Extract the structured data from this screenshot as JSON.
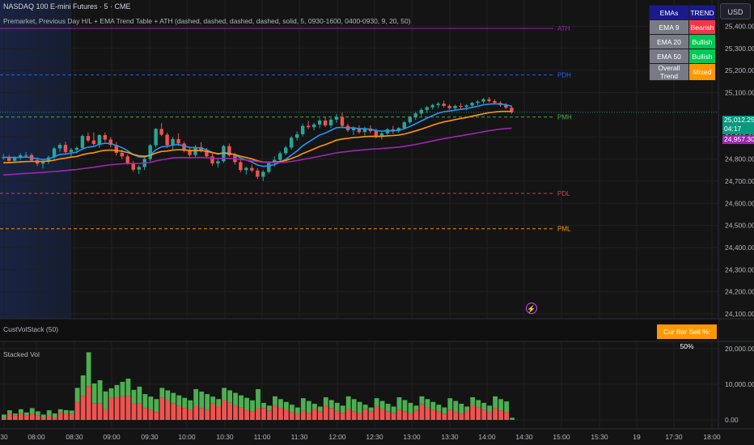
{
  "header": {
    "symbol_title": "NASDAQ 100 E-mini Futures · 5 · CME",
    "indicator_title": "Premarket, Previous Day H/L + EMA Trend Table + ATH (dashed, dashed, dashed, dashed, solid, 5, 0930-1600, 0400-0930, 9, 20, 50)",
    "currency_button": "USD"
  },
  "ema_table": {
    "header": [
      "EMAs",
      "TREND"
    ],
    "rows": [
      {
        "label": "EMA 9",
        "trend": "Bearish"
      },
      {
        "label": "EMA 20",
        "trend": "Bullish"
      },
      {
        "label": "EMA 50",
        "trend": "Bullish"
      },
      {
        "label": "Overall Trend",
        "trend": "Mixed"
      }
    ]
  },
  "levels": [
    {
      "label": "ATH",
      "price": 25390,
      "color": "#9c27b0",
      "style": "solid"
    },
    {
      "label": "PDH",
      "price": 25180,
      "color": "#2962ff",
      "style": "dashed"
    },
    {
      "label": "PMH",
      "price": 24990,
      "color": "#4caf50",
      "style": "dashed"
    },
    {
      "label": "PDL",
      "price": 24645,
      "color": "#f23645",
      "style": "dashed"
    },
    {
      "label": "PML",
      "price": 24485,
      "color": "#ff9800",
      "style": "dashed"
    }
  ],
  "price_axis": {
    "ticks": [
      "25,400.00",
      "25,300.00",
      "25,200.00",
      "25,100.00",
      "24,900.00",
      "24,800.00",
      "24,700.00",
      "24,600.00",
      "24,500.00",
      "24,400.00",
      "24,300.00",
      "24,200.00",
      "24,100.00"
    ],
    "current_price": "25,012.25",
    "countdown": "04:17",
    "ema_price": "24,957.30"
  },
  "volume_pane": {
    "indicator_label": "CustVolStack (50)",
    "sell_badge": "Cur Bar Sell %: 50%",
    "stacked_label": "Stacked Vol",
    "ticks": [
      "20,000.00",
      "10,000.00",
      "0.00"
    ]
  },
  "time_axis": [
    "30",
    "08:00",
    "08:30",
    "09:00",
    "09:30",
    "10:00",
    "10:30",
    "11:00",
    "11:30",
    "12:00",
    "12:30",
    "13:00",
    "13:30",
    "14:00",
    "14:30",
    "15:00",
    "15:30",
    "19",
    "17:30",
    "18:00"
  ],
  "colors": {
    "up": "#26a69a",
    "down": "#ef5350",
    "ema9": "#2196f3",
    "ema20": "#ff9800",
    "ema50": "#9c27b0",
    "vol_buy": "#4caf50",
    "vol_sell": "#ef5350",
    "badge": "#ff9800",
    "bg": "#141414"
  },
  "chart_data": {
    "type": "candlestick",
    "price_range": [
      24100,
      25450
    ],
    "candles": [
      [
        24804,
        24823,
        24796,
        24808
      ],
      [
        24808,
        24818,
        24786,
        24792
      ],
      [
        24792,
        24812,
        24781,
        24805
      ],
      [
        24805,
        24826,
        24796,
        24817
      ],
      [
        24817,
        24832,
        24806,
        24818
      ],
      [
        24818,
        24826,
        24788,
        24794
      ],
      [
        24794,
        24808,
        24768,
        24779
      ],
      [
        24779,
        24800,
        24758,
        24788
      ],
      [
        24788,
        24816,
        24778,
        24808
      ],
      [
        24808,
        24855,
        24796,
        24848
      ],
      [
        24848,
        24872,
        24832,
        24864
      ],
      [
        24864,
        24878,
        24826,
        24832
      ],
      [
        24832,
        24850,
        24812,
        24842
      ],
      [
        24842,
        24858,
        24826,
        24850
      ],
      [
        24850,
        24912,
        24840,
        24904
      ],
      [
        24904,
        24920,
        24876,
        24884
      ],
      [
        24884,
        24920,
        24860,
        24868
      ],
      [
        24868,
        24912,
        24850,
        24908
      ],
      [
        24908,
        24920,
        24878,
        24888
      ],
      [
        24888,
        24899,
        24853,
        24864
      ],
      [
        24864,
        24876,
        24816,
        24828
      ],
      [
        24828,
        24842,
        24800,
        24812
      ],
      [
        24812,
        24820,
        24774,
        24782
      ],
      [
        24782,
        24792,
        24744,
        24752
      ],
      [
        24752,
        24772,
        24732,
        24764
      ],
      [
        24764,
        24806,
        24750,
        24800
      ],
      [
        24800,
        24868,
        24790,
        24862
      ],
      [
        24862,
        24940,
        24852,
        24936
      ],
      [
        24936,
        24962,
        24904,
        24910
      ],
      [
        24910,
        24920,
        24850,
        24862
      ],
      [
        24862,
        24899,
        24840,
        24890
      ],
      [
        24890,
        24916,
        24860,
        24870
      ],
      [
        24870,
        24880,
        24830,
        24840
      ],
      [
        24840,
        24858,
        24808,
        24818
      ],
      [
        24818,
        24864,
        24808,
        24854
      ],
      [
        24854,
        24876,
        24830,
        24840
      ],
      [
        24840,
        24850,
        24804,
        24812
      ],
      [
        24812,
        24824,
        24770,
        24780
      ],
      [
        24780,
        24802,
        24762,
        24790
      ],
      [
        24790,
        24864,
        24782,
        24858
      ],
      [
        24858,
        24870,
        24810,
        24816
      ],
      [
        24816,
        24828,
        24774,
        24786
      ],
      [
        24786,
        24798,
        24740,
        24750
      ],
      [
        24750,
        24766,
        24730,
        24760
      ],
      [
        24760,
        24774,
        24740,
        24748
      ],
      [
        24748,
        24758,
        24710,
        24720
      ],
      [
        24720,
        24750,
        24700,
        24742
      ],
      [
        24742,
        24790,
        24734,
        24782
      ],
      [
        24782,
        24812,
        24766,
        24796
      ],
      [
        24796,
        24834,
        24786,
        24826
      ],
      [
        24826,
        24860,
        24818,
        24852
      ],
      [
        24852,
        24904,
        24842,
        24896
      ],
      [
        24896,
        24924,
        24884,
        24912
      ],
      [
        24912,
        24960,
        24902,
        24950
      ],
      [
        24950,
        24972,
        24934,
        24944
      ],
      [
        24944,
        24964,
        24930,
        24956
      ],
      [
        24956,
        24984,
        24940,
        24974
      ],
      [
        24974,
        24990,
        24944,
        24952
      ],
      [
        24952,
        24986,
        24940,
        24978
      ],
      [
        24978,
        25004,
        24964,
        24990
      ],
      [
        24990,
        25010,
        24942,
        24950
      ],
      [
        24950,
        24960,
        24922,
        24930
      ],
      [
        24930,
        24948,
        24908,
        24940
      ],
      [
        24940,
        24952,
        24914,
        24922
      ],
      [
        24922,
        24946,
        24906,
        24938
      ],
      [
        24938,
        24952,
        24916,
        24926
      ],
      [
        24926,
        24938,
        24894,
        24904
      ],
      [
        24904,
        24922,
        24888,
        24916
      ],
      [
        24916,
        24940,
        24906,
        24934
      ],
      [
        24934,
        24950,
        24914,
        24926
      ],
      [
        24926,
        24944,
        24918,
        24940
      ],
      [
        24940,
        24972,
        24934,
        24966
      ],
      [
        24966,
        24996,
        24958,
        24990
      ],
      [
        24990,
        25014,
        24976,
        25006
      ],
      [
        25006,
        25030,
        24994,
        25022
      ],
      [
        25022,
        25040,
        25008,
        25034
      ],
      [
        25034,
        25050,
        25024,
        25044
      ],
      [
        25044,
        25058,
        25030,
        25050
      ],
      [
        25050,
        25064,
        25034,
        25040
      ],
      [
        25040,
        25048,
        25022,
        25030
      ],
      [
        25030,
        25046,
        25018,
        25040
      ],
      [
        25040,
        25052,
        25026,
        25036
      ],
      [
        25036,
        25048,
        25020,
        25042
      ],
      [
        25042,
        25058,
        25034,
        25054
      ],
      [
        25054,
        25066,
        25044,
        25060
      ],
      [
        25060,
        25076,
        25050,
        25070
      ],
      [
        25070,
        25080,
        25056,
        25062
      ],
      [
        25062,
        25070,
        25048,
        25054
      ],
      [
        25054,
        25062,
        25036,
        25044
      ],
      [
        25044,
        25052,
        25026,
        25032
      ],
      [
        25032,
        25042,
        25004,
        25012
      ]
    ]
  }
}
